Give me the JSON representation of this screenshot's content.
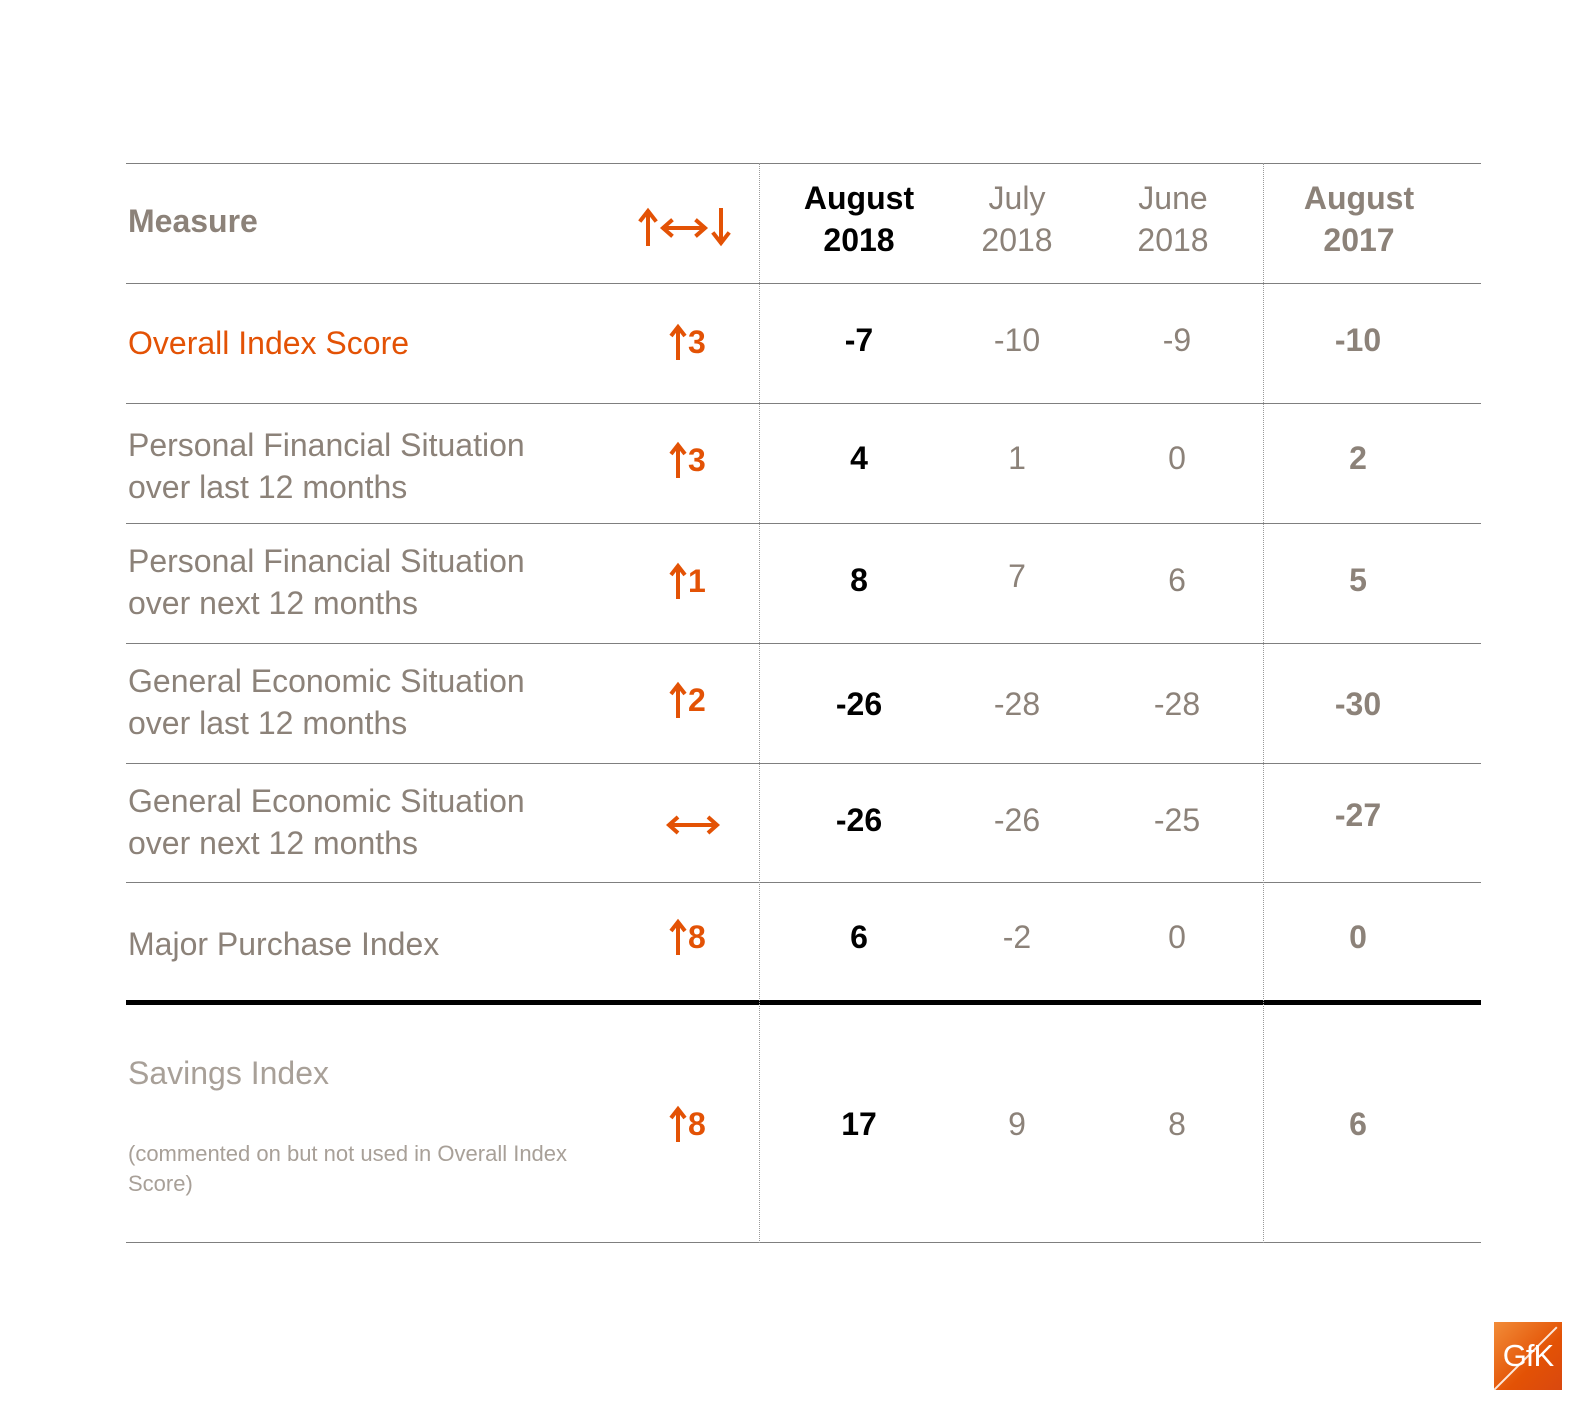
{
  "table": {
    "measure_header": "Measure",
    "change_header_icon": "up-sideways-down-arrows-icon",
    "columns": [
      {
        "line1": "August",
        "line2": "2018"
      },
      {
        "line1": "July",
        "line2": "2018"
      },
      {
        "line1": "June",
        "line2": "2018"
      },
      {
        "line1": "August",
        "line2": "2017"
      }
    ],
    "rows": [
      {
        "label1": "Overall Index Score",
        "label2": "",
        "direction": "up",
        "change": "3",
        "values": [
          "-7",
          "-10",
          "-9",
          "-10"
        ]
      },
      {
        "label1": "Personal Financial Situation",
        "label2": "over last 12 months",
        "direction": "up",
        "change": "3",
        "values": [
          "4",
          "1",
          "0",
          "2"
        ]
      },
      {
        "label1": "Personal Financial Situation",
        "label2": "over next 12 months",
        "direction": "up",
        "change": "1",
        "values": [
          "8",
          "7",
          "6",
          "5"
        ]
      },
      {
        "label1": "General Economic Situation",
        "label2": "over last 12 months",
        "direction": "up",
        "change": "2",
        "values": [
          "-26",
          "-28",
          "-28",
          "-30"
        ]
      },
      {
        "label1": "General Economic Situation",
        "label2": "over next 12 months",
        "direction": "sideways",
        "change": "",
        "values": [
          "-26",
          "-26",
          "-25",
          "-27"
        ]
      },
      {
        "label1": "Major Purchase Index",
        "label2": "",
        "direction": "up",
        "change": "8",
        "values": [
          "6",
          "-2",
          "0",
          "0"
        ]
      },
      {
        "label1": "Savings Index",
        "label2": "(commented on but not used in Overall Index Score)",
        "direction": "up",
        "change": "8",
        "values": [
          "17",
          "9",
          "8",
          "6"
        ]
      }
    ]
  },
  "colors": {
    "accent": "#e35205",
    "label_grey": "#8c8279",
    "value_black": "#000000"
  },
  "logo": {
    "text": "GfK"
  }
}
